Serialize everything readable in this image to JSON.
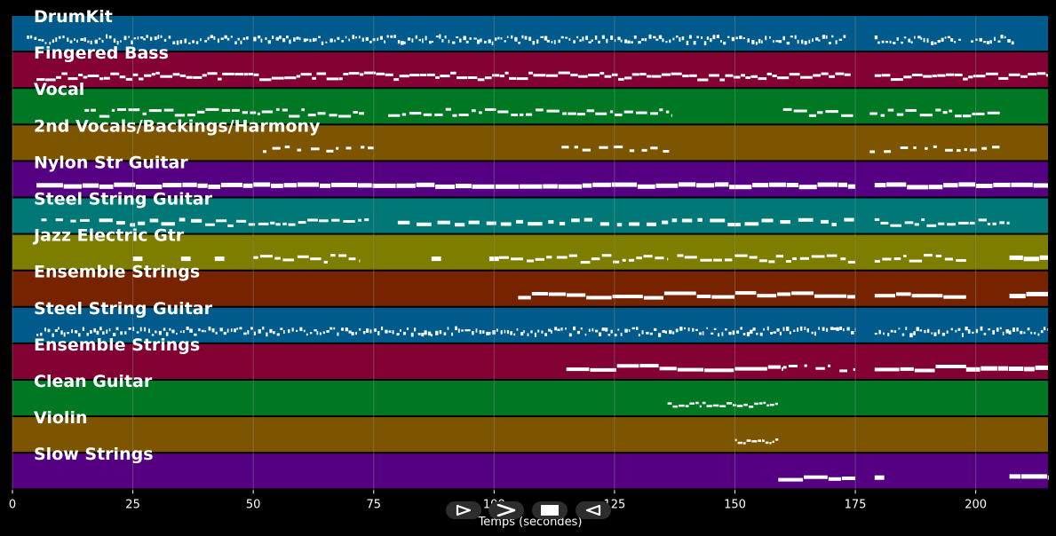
{
  "xlabel": "Temps (secondes)",
  "x_ticks": [
    "0",
    "25",
    "50",
    "75",
    "100",
    "125",
    "150",
    "175",
    "200"
  ],
  "colors": {
    "background": "#000000",
    "grid": "#8c8c8c",
    "text": "#ffffff",
    "note": "#ffffff",
    "track_palette": [
      "#005a8c",
      "#820032",
      "#007823",
      "#7d5500",
      "#550082",
      "#007878",
      "#7d7d00",
      "#782300"
    ]
  },
  "controls": [
    {
      "name": "play-button",
      "icon": "play-outline-icon"
    },
    {
      "name": "fast-forward-button",
      "icon": "chevron-right-icon"
    },
    {
      "name": "stop-button",
      "icon": "stop-icon"
    },
    {
      "name": "rewind-button",
      "icon": "rewind-outline-icon"
    }
  ],
  "chart_data": {
    "type": "piano-roll",
    "xlabel": "Temps (secondes)",
    "xlim": [
      0,
      215
    ],
    "grid": true,
    "tracks": [
      {
        "name": "DrumKit",
        "color": "#005a8c",
        "segments": [
          [
            3,
            49,
            "drum"
          ],
          [
            50,
            173,
            "drum"
          ],
          [
            179,
            197,
            "drum"
          ],
          [
            199,
            208,
            "drum"
          ]
        ]
      },
      {
        "name": "Fingered Bass",
        "color": "#820032",
        "segments": [
          [
            5,
            174,
            "bass"
          ],
          [
            179,
            215,
            "bass"
          ]
        ]
      },
      {
        "name": "Vocal",
        "color": "#007823",
        "segments": [
          [
            15,
            73,
            "dense"
          ],
          [
            78,
            137,
            "dense"
          ],
          [
            160,
            175,
            "dense"
          ],
          [
            178,
            205,
            "dense"
          ]
        ]
      },
      {
        "name": "2nd Vocals/Backings/Harmony",
        "color": "#7d5500",
        "segments": [
          [
            52,
            75,
            "sparse"
          ],
          [
            114,
            137,
            "sparse"
          ],
          [
            178,
            206,
            "sparse"
          ]
        ]
      },
      {
        "name": "Nylon Str Guitar",
        "color": "#550082",
        "segments": [
          [
            5,
            175,
            "solid"
          ],
          [
            179,
            215,
            "solid"
          ]
        ]
      },
      {
        "name": "Steel String Guitar",
        "color": "#007878",
        "segments": [
          [
            6,
            16,
            "sparse"
          ],
          [
            18,
            40,
            "blocks"
          ],
          [
            40,
            74,
            "dense"
          ],
          [
            80,
            175,
            "blocks"
          ],
          [
            179,
            207,
            "dense"
          ]
        ]
      },
      {
        "name": "Jazz Electric Gtr",
        "color": "#7d7d00",
        "segments": [
          [
            25,
            27,
            "block"
          ],
          [
            35,
            37,
            "block"
          ],
          [
            42,
            44,
            "block"
          ],
          [
            50,
            72,
            "dense"
          ],
          [
            87,
            89,
            "block"
          ],
          [
            99,
            101,
            "block"
          ],
          [
            101,
            112,
            "dense"
          ],
          [
            113,
            136,
            "dense"
          ],
          [
            138,
            175,
            "dense"
          ],
          [
            179,
            198,
            "dense"
          ],
          [
            207,
            215,
            "solid"
          ]
        ]
      },
      {
        "name": "Ensemble Strings",
        "color": "#782300",
        "segments": [
          [
            105,
            175,
            "long"
          ],
          [
            179,
            198,
            "long"
          ],
          [
            207,
            215,
            "solid"
          ]
        ]
      },
      {
        "name": "Steel String Guitar",
        "color": "#005a8c",
        "segments": [
          [
            5,
            175,
            "drum"
          ],
          [
            179,
            215,
            "drum"
          ]
        ]
      },
      {
        "name": "Ensemble Strings",
        "color": "#820032",
        "segments": [
          [
            115,
            160,
            "long"
          ],
          [
            160,
            175,
            "sparse"
          ],
          [
            179,
            198,
            "long"
          ],
          [
            198,
            215,
            "solid"
          ]
        ]
      },
      {
        "name": "Clean Guitar",
        "color": "#007823",
        "segments": [
          [
            136,
            159,
            "thin"
          ]
        ]
      },
      {
        "name": "Violin",
        "color": "#7d5500",
        "segments": [
          [
            150,
            159,
            "thin"
          ]
        ]
      },
      {
        "name": "Slow Strings",
        "color": "#550082",
        "segments": [
          [
            159,
            175,
            "long"
          ],
          [
            179,
            181,
            "block"
          ],
          [
            207,
            215,
            "solid"
          ]
        ]
      }
    ]
  }
}
